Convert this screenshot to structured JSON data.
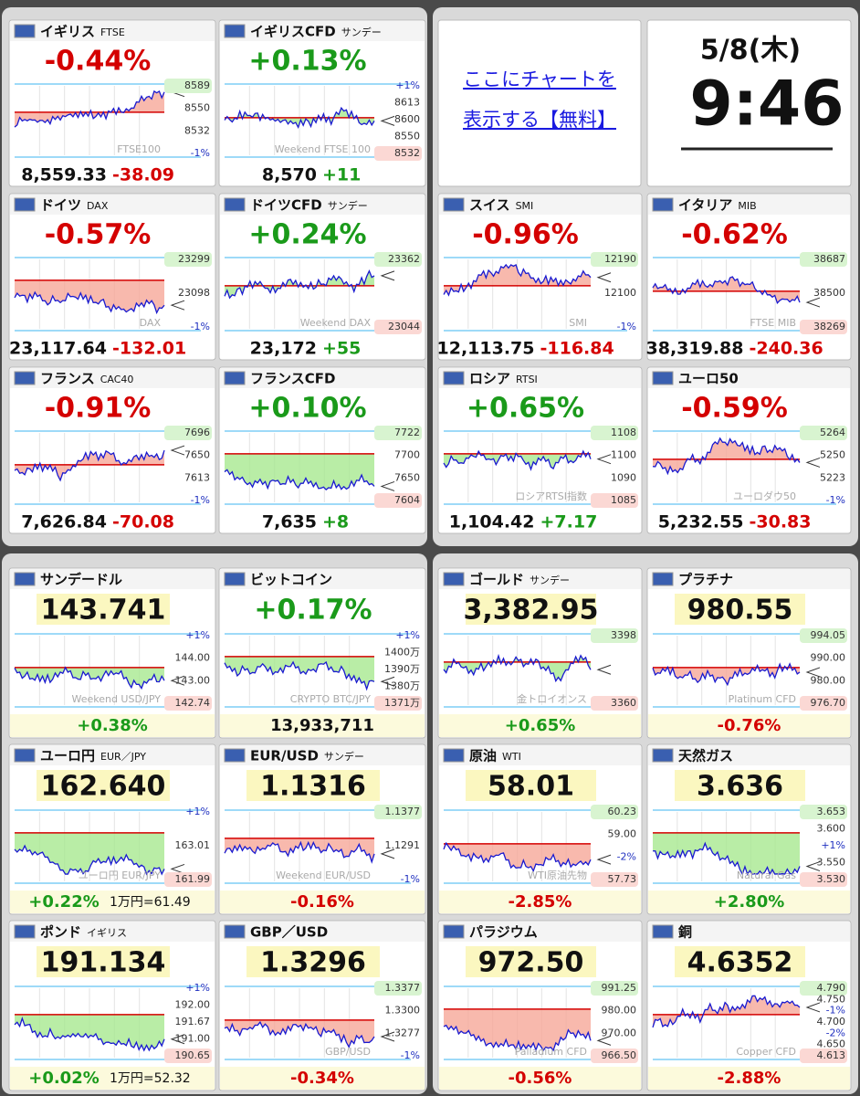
{
  "top": {
    "tiles": [
      {
        "name": "イギリス",
        "sub": "FTSE",
        "headline": "-0.44%",
        "headline_color": "#d40000",
        "labels": [
          "8589",
          "8550",
          "8532",
          "-1%"
        ],
        "watermark": "FTSE100",
        "price": "8,559.33",
        "diff": "-38.09",
        "diff_color": "#d40000"
      },
      {
        "name": "イギリスCFD",
        "sub": "サンデー",
        "headline": "+0.13%",
        "headline_color": "#1a9a1a",
        "labels": [
          "+1%",
          "8613",
          "8600",
          "8550",
          "8532"
        ],
        "watermark": "Weekend FTSE 100",
        "price": "8,570",
        "diff": "+11",
        "diff_color": "#1a9a1a"
      },
      {
        "name": "ドイツ",
        "sub": "DAX",
        "headline": "-0.57%",
        "headline_color": "#d40000",
        "labels": [
          "23299",
          "23098",
          "-1%"
        ],
        "watermark": "DAX",
        "price": "23,117.64",
        "diff": "-132.01",
        "diff_color": "#d40000"
      },
      {
        "name": "ドイツCFD",
        "sub": "サンデー",
        "headline": "+0.24%",
        "headline_color": "#1a9a1a",
        "labels": [
          "23362",
          "23044"
        ],
        "watermark": "Weekend DAX",
        "price": "23,172",
        "diff": "+55",
        "diff_color": "#1a9a1a"
      },
      {
        "name": "フランス",
        "sub": "CAC40",
        "headline": "-0.91%",
        "headline_color": "#d40000",
        "labels": [
          "7696",
          "7650",
          "7613",
          "-1%"
        ],
        "price": "7,626.84",
        "diff": "-70.08",
        "diff_color": "#d40000"
      },
      {
        "name": "フランスCFD",
        "sub": "",
        "headline": "+0.10%",
        "headline_color": "#1a9a1a",
        "labels": [
          "7722",
          "7700",
          "7650",
          "7604"
        ],
        "price": "7,635",
        "diff": "+8",
        "diff_color": "#1a9a1a"
      },
      {
        "name": "スイス",
        "sub": "SMI",
        "headline": "-0.96%",
        "headline_color": "#d40000",
        "labels": [
          "12190",
          "12100",
          "-1%"
        ],
        "watermark": "SMI",
        "price": "12,113.75",
        "diff": "-116.84",
        "diff_color": "#d40000"
      },
      {
        "name": "イタリア",
        "sub": "MIB",
        "headline": "-0.62%",
        "headline_color": "#d40000",
        "labels": [
          "38687",
          "38500",
          "38269"
        ],
        "watermark": "FTSE MIB",
        "price": "38,319.88",
        "diff": "-240.36",
        "diff_color": "#d40000"
      },
      {
        "name": "ロシア",
        "sub": "RTSI",
        "headline": "+0.65%",
        "headline_color": "#1a9a1a",
        "labels": [
          "1108",
          "1100",
          "1090",
          "1085"
        ],
        "watermark": "ロシアRTSI指数",
        "price": "1,104.42",
        "diff": "+7.17",
        "diff_color": "#1a9a1a"
      },
      {
        "name": "ユーロ50",
        "sub": "",
        "headline": "-0.59%",
        "headline_color": "#d40000",
        "labels": [
          "5264",
          "5250",
          "5223",
          "-1%"
        ],
        "watermark": "ユーロダウ50",
        "price": "5,232.55",
        "diff": "-30.83",
        "diff_color": "#d40000"
      }
    ],
    "link": {
      "line1": "ここにチャートを",
      "line2": "表示する【無料】"
    },
    "clock": {
      "date": "5/8(木)",
      "time": "9:46"
    }
  },
  "bottom": {
    "tiles": [
      {
        "name": "サンデードル",
        "sub": "",
        "headline": "143.741",
        "headline_color": "#111111",
        "labels": [
          "+1%",
          "144.00",
          "143.00",
          "142.74"
        ],
        "watermark": "Weekend USD/JPY",
        "footline": "+0.38%",
        "footline_color": "#1a9a1a"
      },
      {
        "name": "ビットコイン",
        "sub": "",
        "headline": "+0.17%",
        "headline_color": "#1a9a1a",
        "labels": [
          "+1%",
          "1400万",
          "1390万",
          "1380万",
          "1371万"
        ],
        "watermark": "CRYPTO BTC/JPY",
        "footline": "13,933,711",
        "footline_color": "#111111"
      },
      {
        "name": "ゴールド",
        "sub": "サンデー",
        "headline": "3,382.95",
        "headline_color": "#111111",
        "labels": [
          "3398",
          "3360"
        ],
        "watermark": "金トロイオンス",
        "footline": "+0.65%",
        "footline_color": "#1a9a1a"
      },
      {
        "name": "プラチナ",
        "sub": "",
        "headline": "980.55",
        "headline_color": "#111111",
        "labels": [
          "994.05",
          "990.00",
          "980.00",
          "976.70"
        ],
        "watermark": "Platinum CFD",
        "footline": "-0.76%",
        "footline_color": "#d40000"
      },
      {
        "name": "ユーロ円",
        "sub": "EUR／JPY",
        "headline": "162.640",
        "headline_color": "#111111",
        "labels": [
          "+1%",
          "163.01",
          "161.99"
        ],
        "watermark": "ユーロ円 EUR/JPY",
        "footline": "+0.22%",
        "footline_color": "#1a9a1a",
        "extra": "1万円=61.49"
      },
      {
        "name": "EUR/USD",
        "sub": "サンデー",
        "headline": "1.1316",
        "headline_color": "#111111",
        "labels": [
          "1.1377",
          "1.1291",
          "-1%"
        ],
        "watermark": "Weekend EUR/USD",
        "footline": "-0.16%",
        "footline_color": "#d40000"
      },
      {
        "name": "原油",
        "sub": "WTI",
        "headline": "58.01",
        "headline_color": "#111111",
        "labels": [
          "60.23",
          "59.00",
          "-2%",
          "57.73"
        ],
        "watermark": "WTI原油先物",
        "footline": "-2.85%",
        "footline_color": "#d40000"
      },
      {
        "name": "天然ガス",
        "sub": "",
        "headline": "3.636",
        "headline_color": "#111111",
        "labels": [
          "3.653",
          "3.600",
          "+1%",
          "3.550",
          "3.530"
        ],
        "watermark": "Natural Gas",
        "footline": "+2.80%",
        "footline_color": "#1a9a1a"
      },
      {
        "name": "ポンド",
        "sub": "イギリス",
        "headline": "191.134",
        "headline_color": "#111111",
        "labels": [
          "+1%",
          "192.00",
          "191.67",
          "191.00",
          "190.65"
        ],
        "footline": "+0.02%",
        "footline_color": "#1a9a1a",
        "extra": "1万円=52.32"
      },
      {
        "name": "GBP／USD",
        "sub": "",
        "headline": "1.3296",
        "headline_color": "#111111",
        "labels": [
          "1.3377",
          "1.3300",
          "1.3277",
          "-1%"
        ],
        "watermark": "GBP/USD",
        "footline": "-0.34%",
        "footline_color": "#d40000"
      },
      {
        "name": "パラジウム",
        "sub": "",
        "headline": "972.50",
        "headline_color": "#111111",
        "labels": [
          "991.25",
          "980.00",
          "970.00",
          "966.50"
        ],
        "watermark": "Palladium CFD",
        "footline": "-0.56%",
        "footline_color": "#d40000"
      },
      {
        "name": "銅",
        "sub": "",
        "headline": "4.6352",
        "headline_color": "#111111",
        "labels": [
          "4.790",
          "4.750",
          "-1%",
          "4.700",
          "-2%",
          "4.650",
          "4.613"
        ],
        "watermark": "Copper CFD",
        "footline": "-2.88%",
        "footline_color": "#d40000"
      }
    ]
  }
}
